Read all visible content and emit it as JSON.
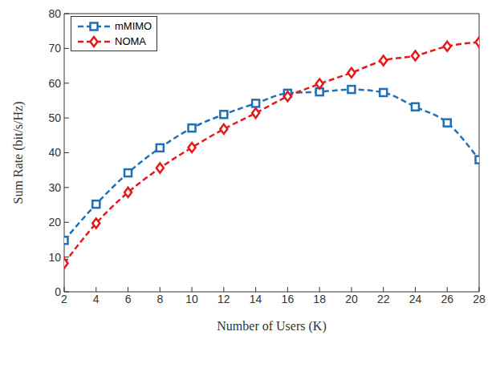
{
  "chart_data": {
    "type": "line",
    "x": [
      2,
      4,
      6,
      8,
      10,
      12,
      14,
      16,
      18,
      20,
      22,
      24,
      26,
      28
    ],
    "series": [
      {
        "name": "mMIMO",
        "color": "#1f70b8",
        "marker": "square",
        "line_style": "dashed",
        "values": [
          14.8,
          25.2,
          34.2,
          41.4,
          47.1,
          51.0,
          54.2,
          57.1,
          57.5,
          58.2,
          57.3,
          53.2,
          48.6,
          38.0
        ]
      },
      {
        "name": "NOMA",
        "color": "#e31a1c",
        "marker": "diamond",
        "line_style": "dashed",
        "values": [
          8.2,
          19.7,
          28.6,
          35.6,
          41.5,
          46.8,
          51.4,
          56.2,
          59.8,
          63.0,
          66.5,
          67.9,
          70.6,
          71.8
        ]
      }
    ],
    "xlabel": "Number of Users (K)",
    "ylabel": "Sum Rate (bit/s/Hz)",
    "xlim": [
      2,
      28
    ],
    "ylim": [
      0,
      80
    ],
    "xticks": [
      2,
      4,
      6,
      8,
      10,
      12,
      14,
      16,
      18,
      20,
      22,
      24,
      26,
      28
    ],
    "yticks": [
      0,
      10,
      20,
      30,
      40,
      50,
      60,
      70,
      80
    ],
    "grid": false,
    "legend": "upper left"
  }
}
